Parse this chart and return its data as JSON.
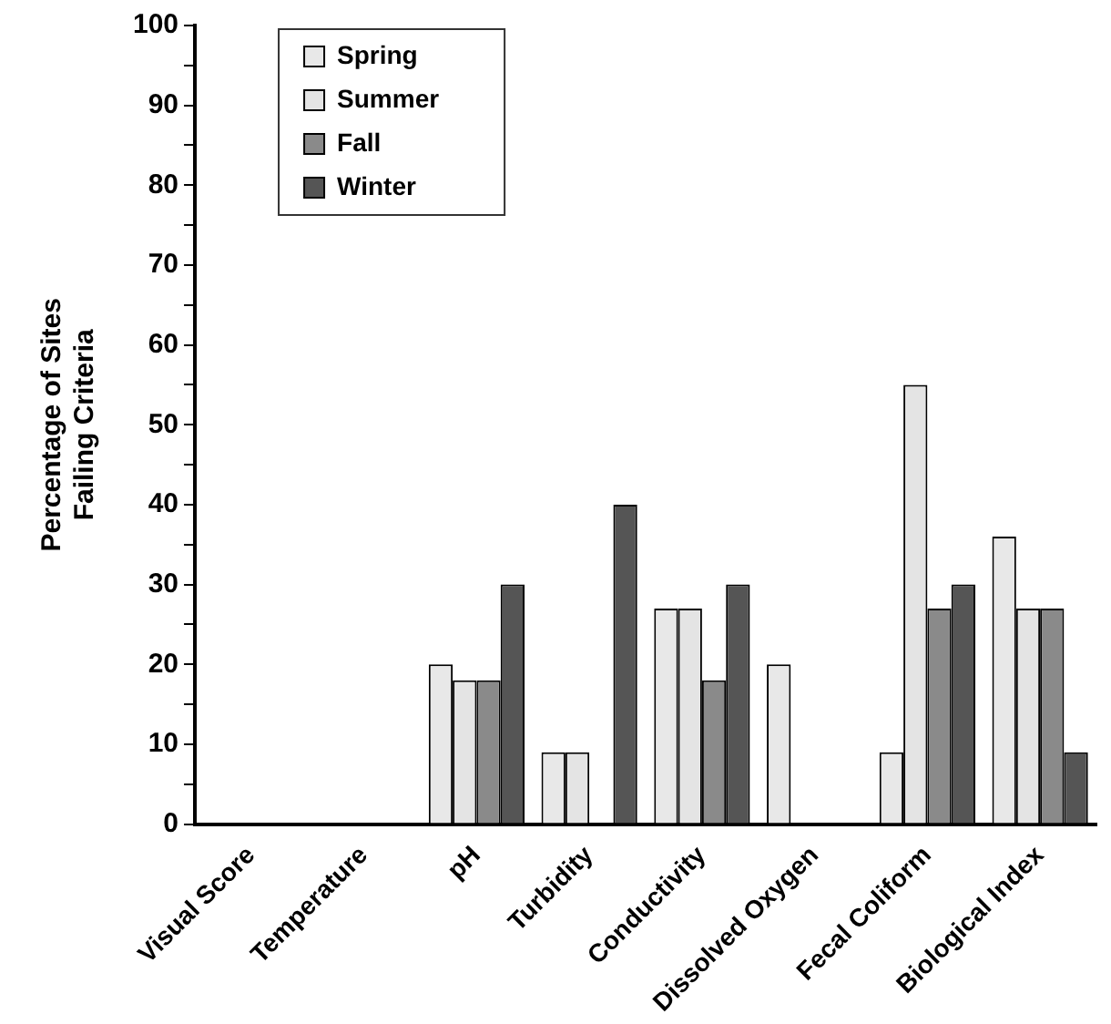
{
  "chart_data": {
    "type": "bar",
    "ylabel": "Percentage of Sites\nFailing Criteria",
    "categories": [
      "Visual Score",
      "Temperature",
      "pH",
      "Turbidity",
      "Conductivity",
      "Dissolved Oxygen",
      "Fecal Coliform",
      "Biological Index"
    ],
    "series": [
      {
        "name": "Spring",
        "color": "#e8e8e8",
        "values": [
          0,
          0,
          20,
          9,
          27,
          20,
          9,
          36
        ]
      },
      {
        "name": "Summer",
        "color": "#e4e4e4",
        "values": [
          0,
          0,
          18,
          9,
          27,
          0,
          55,
          27
        ]
      },
      {
        "name": "Fall",
        "color": "#8a8a8a",
        "values": [
          0,
          0,
          18,
          0,
          18,
          0,
          27,
          27
        ]
      },
      {
        "name": "Winter",
        "color": "#555555",
        "values": [
          0,
          0,
          30,
          40,
          30,
          0,
          30,
          9
        ]
      }
    ],
    "ylim": [
      0,
      100
    ],
    "yticks": [
      0,
      {
        "value": 5,
        "label": null
      },
      10,
      {
        "value": 15,
        "label": null
      },
      20,
      {
        "value": 25,
        "label": null
      },
      30,
      {
        "value": 35,
        "label": null
      },
      40,
      {
        "value": 45,
        "label": null
      },
      50,
      {
        "value": 55,
        "label": null
      },
      60,
      {
        "value": 65,
        "label": null
      },
      70,
      {
        "value": 75,
        "label": null
      },
      80,
      {
        "value": 85,
        "label": null
      },
      90,
      {
        "value": 95,
        "label": null
      },
      100
    ],
    "grid": false,
    "legend": "top left"
  }
}
